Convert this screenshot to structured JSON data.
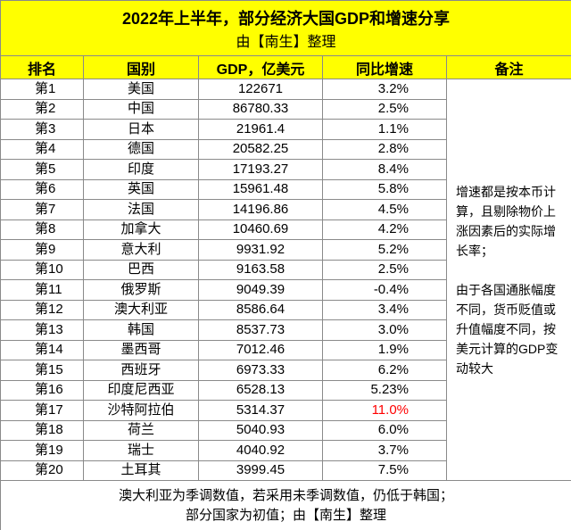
{
  "header": {
    "title": "2022年上半年，部分经济大国GDP和增速分享",
    "subtitle": "由【南生】整理"
  },
  "table": {
    "columns": [
      "排名",
      "国别",
      "GDP，亿美元",
      "同比增速",
      "备注"
    ],
    "rows": [
      [
        "第1",
        "美国",
        "122671",
        "3.2%"
      ],
      [
        "第2",
        "中国",
        "86780.33",
        "2.5%"
      ],
      [
        "第3",
        "日本",
        "21961.4",
        "1.1%"
      ],
      [
        "第4",
        "德国",
        "20582.25",
        "2.8%"
      ],
      [
        "第5",
        "印度",
        "17193.27",
        "8.4%"
      ],
      [
        "第6",
        "英国",
        "15961.48",
        "5.8%"
      ],
      [
        "第7",
        "法国",
        "14196.86",
        "4.5%"
      ],
      [
        "第8",
        "加拿大",
        "10460.69",
        "4.2%"
      ],
      [
        "第9",
        "意大利",
        "9931.92",
        "5.2%"
      ],
      [
        "第10",
        "巴西",
        "9163.58",
        "2.5%"
      ],
      [
        "第11",
        "俄罗斯",
        "9049.39",
        "-0.4%"
      ],
      [
        "第12",
        "澳大利亚",
        "8586.64",
        "3.4%"
      ],
      [
        "第13",
        "韩国",
        "8537.73",
        "3.0%"
      ],
      [
        "第14",
        "墨西哥",
        "7012.46",
        "1.9%"
      ],
      [
        "第15",
        "西班牙",
        "6973.33",
        "6.2%"
      ],
      [
        "第16",
        "印度尼西亚",
        "6528.13",
        "5.23%"
      ],
      [
        "第17",
        "沙特阿拉伯",
        "5314.37",
        "11.0%"
      ],
      [
        "第18",
        "荷兰",
        "5040.93",
        "6.0%"
      ],
      [
        "第19",
        "瑞士",
        "4040.92",
        "3.7%"
      ],
      [
        "第20",
        "土耳其",
        "3999.45",
        "7.5%"
      ]
    ],
    "remarks": [
      "增速都是按本币计算，且剔除物价上涨因素后的实际增长率；",
      "由于各国通胀幅度不同，货币贬值或升值幅度不同，按美元计算的GDP变动较大"
    ]
  },
  "footer": [
    "澳大利亚为季调数值，若采用未季调数值，仍低于韩国；",
    "部分国家为初值；由【南生】整理"
  ]
}
